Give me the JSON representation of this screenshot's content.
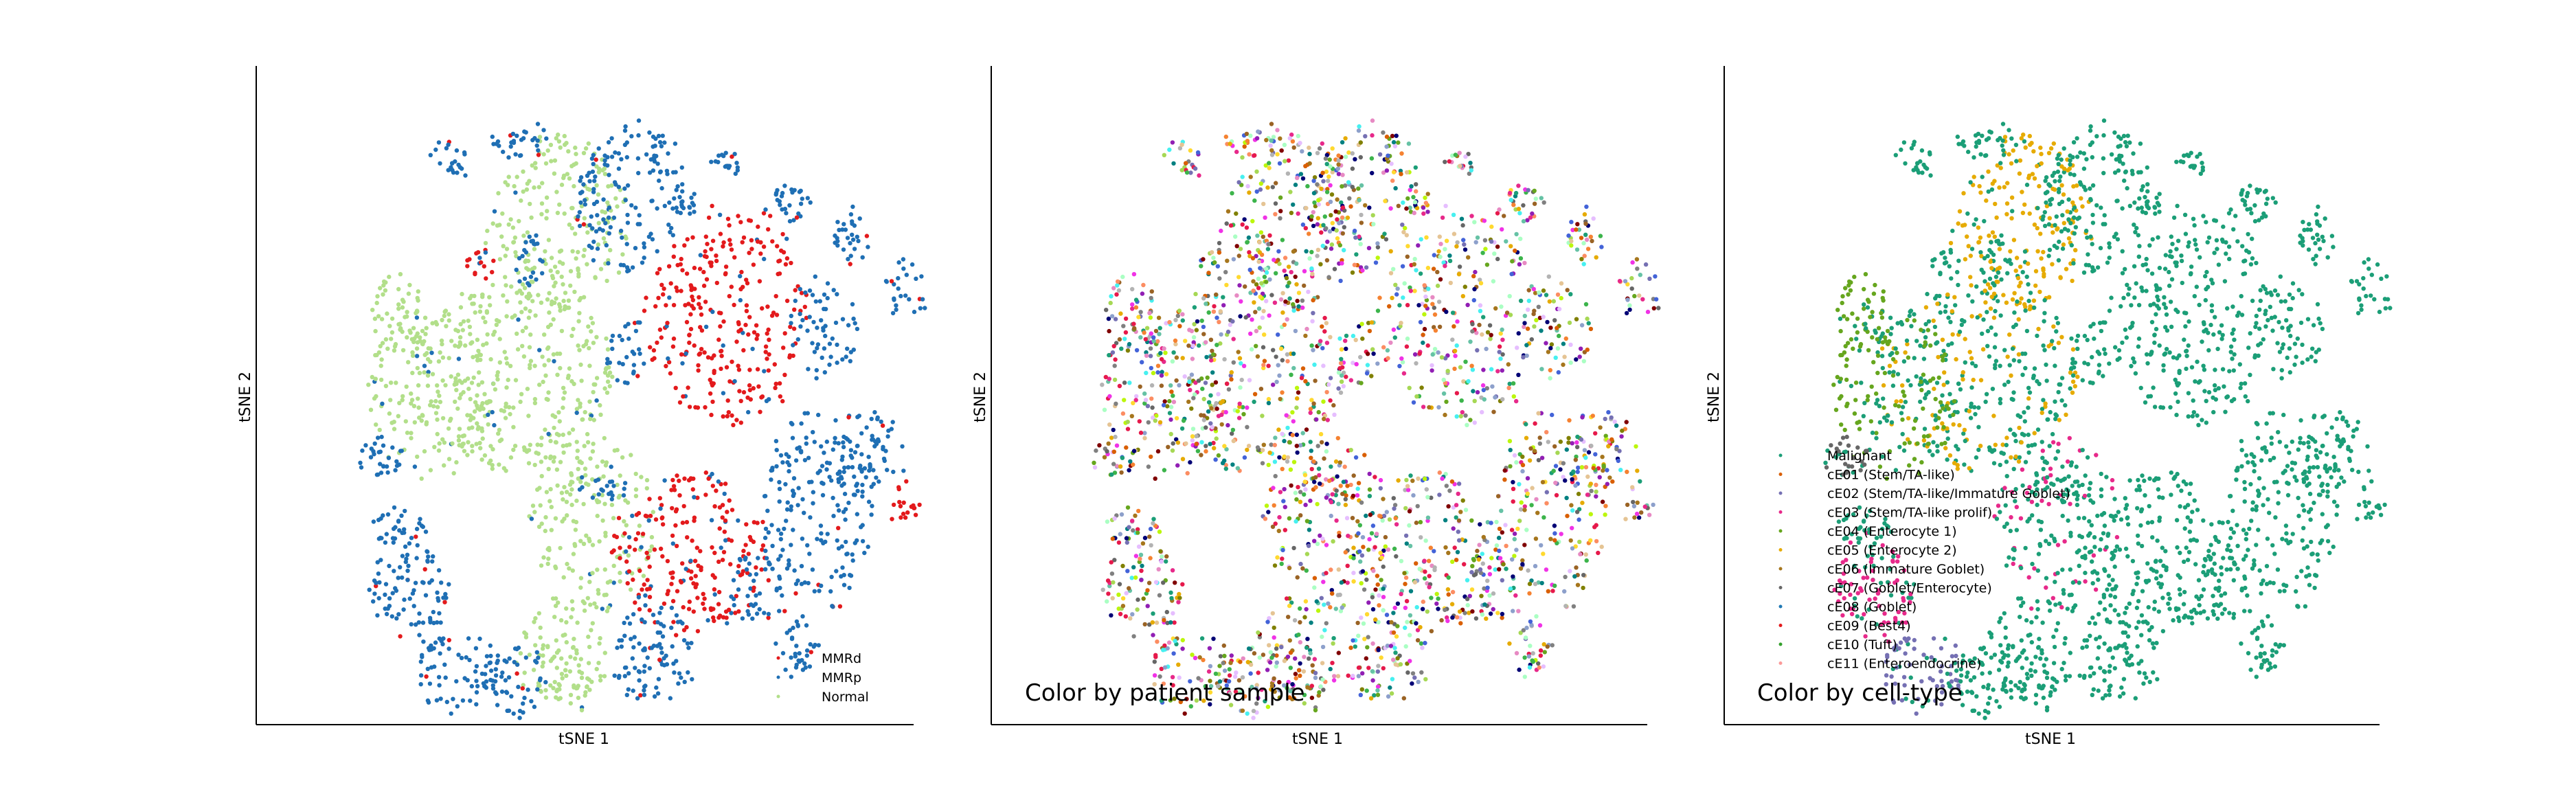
{
  "chart_data": [
    {
      "type": "scatter",
      "xlabel": "tSNE 1",
      "ylabel": "tSNE 2",
      "annotation": "",
      "legend": {
        "placement": "lower-right",
        "entries": [
          {
            "name": "MMRd",
            "color": "#e31a1c"
          },
          {
            "name": "MMRp",
            "color": "#1f6fb4"
          },
          {
            "name": "Normal",
            "color": "#b2df8a"
          }
        ]
      }
    },
    {
      "type": "scatter",
      "xlabel": "tSNE 1",
      "ylabel": "tSNE 2",
      "annotation": "Color by patient sample",
      "palette": [
        "#e6194b",
        "#3cb44b",
        "#4363d8",
        "#f58231",
        "#911eb4",
        "#46f0f0",
        "#f032e6",
        "#bcf60c",
        "#008080",
        "#e6beff",
        "#9a6324",
        "#800000",
        "#aaffc3",
        "#808000",
        "#000075",
        "#808080",
        "#66c2a5",
        "#fc8d62",
        "#8da0cb",
        "#e78ac3",
        "#a6d854",
        "#ffd92f",
        "#e5c494",
        "#b3b3b3",
        "#1b9e77",
        "#d95f02",
        "#7570b3",
        "#e7298a",
        "#66a61e",
        "#e6ab02",
        "#a6761d",
        "#666666"
      ]
    },
    {
      "type": "scatter",
      "xlabel": "tSNE 1",
      "ylabel": "tSNE 2",
      "annotation": "Color by cell-type",
      "legend": {
        "placement": "lower-left",
        "entries": [
          {
            "name": "Malignant",
            "color": "#1b9e77"
          },
          {
            "name": "cE01 (Stem/TA-like)",
            "color": "#d95f02"
          },
          {
            "name": "cE02 (Stem/TA-like/Immature Goblet)",
            "color": "#7570b3"
          },
          {
            "name": "cE03 (Stem/TA-like prolif)",
            "color": "#e7298a"
          },
          {
            "name": "cE04 (Enterocyte 1)",
            "color": "#66a61e"
          },
          {
            "name": "cE05 (Enterocyte 2)",
            "color": "#e6ab02"
          },
          {
            "name": "cE06 (Immature Goblet)",
            "color": "#a6761d"
          },
          {
            "name": "cE07 (Goblet/Enterocyte)",
            "color": "#666666"
          },
          {
            "name": "cE08 (Goblet)",
            "color": "#1f78b4"
          },
          {
            "name": "cE09 (Best4)",
            "color": "#e31a1c"
          },
          {
            "name": "cE10 (Tuft)",
            "color": "#33a02c"
          },
          {
            "name": "cE11 (Enteroendocrine)",
            "color": "#fb9a99"
          }
        ]
      }
    }
  ]
}
